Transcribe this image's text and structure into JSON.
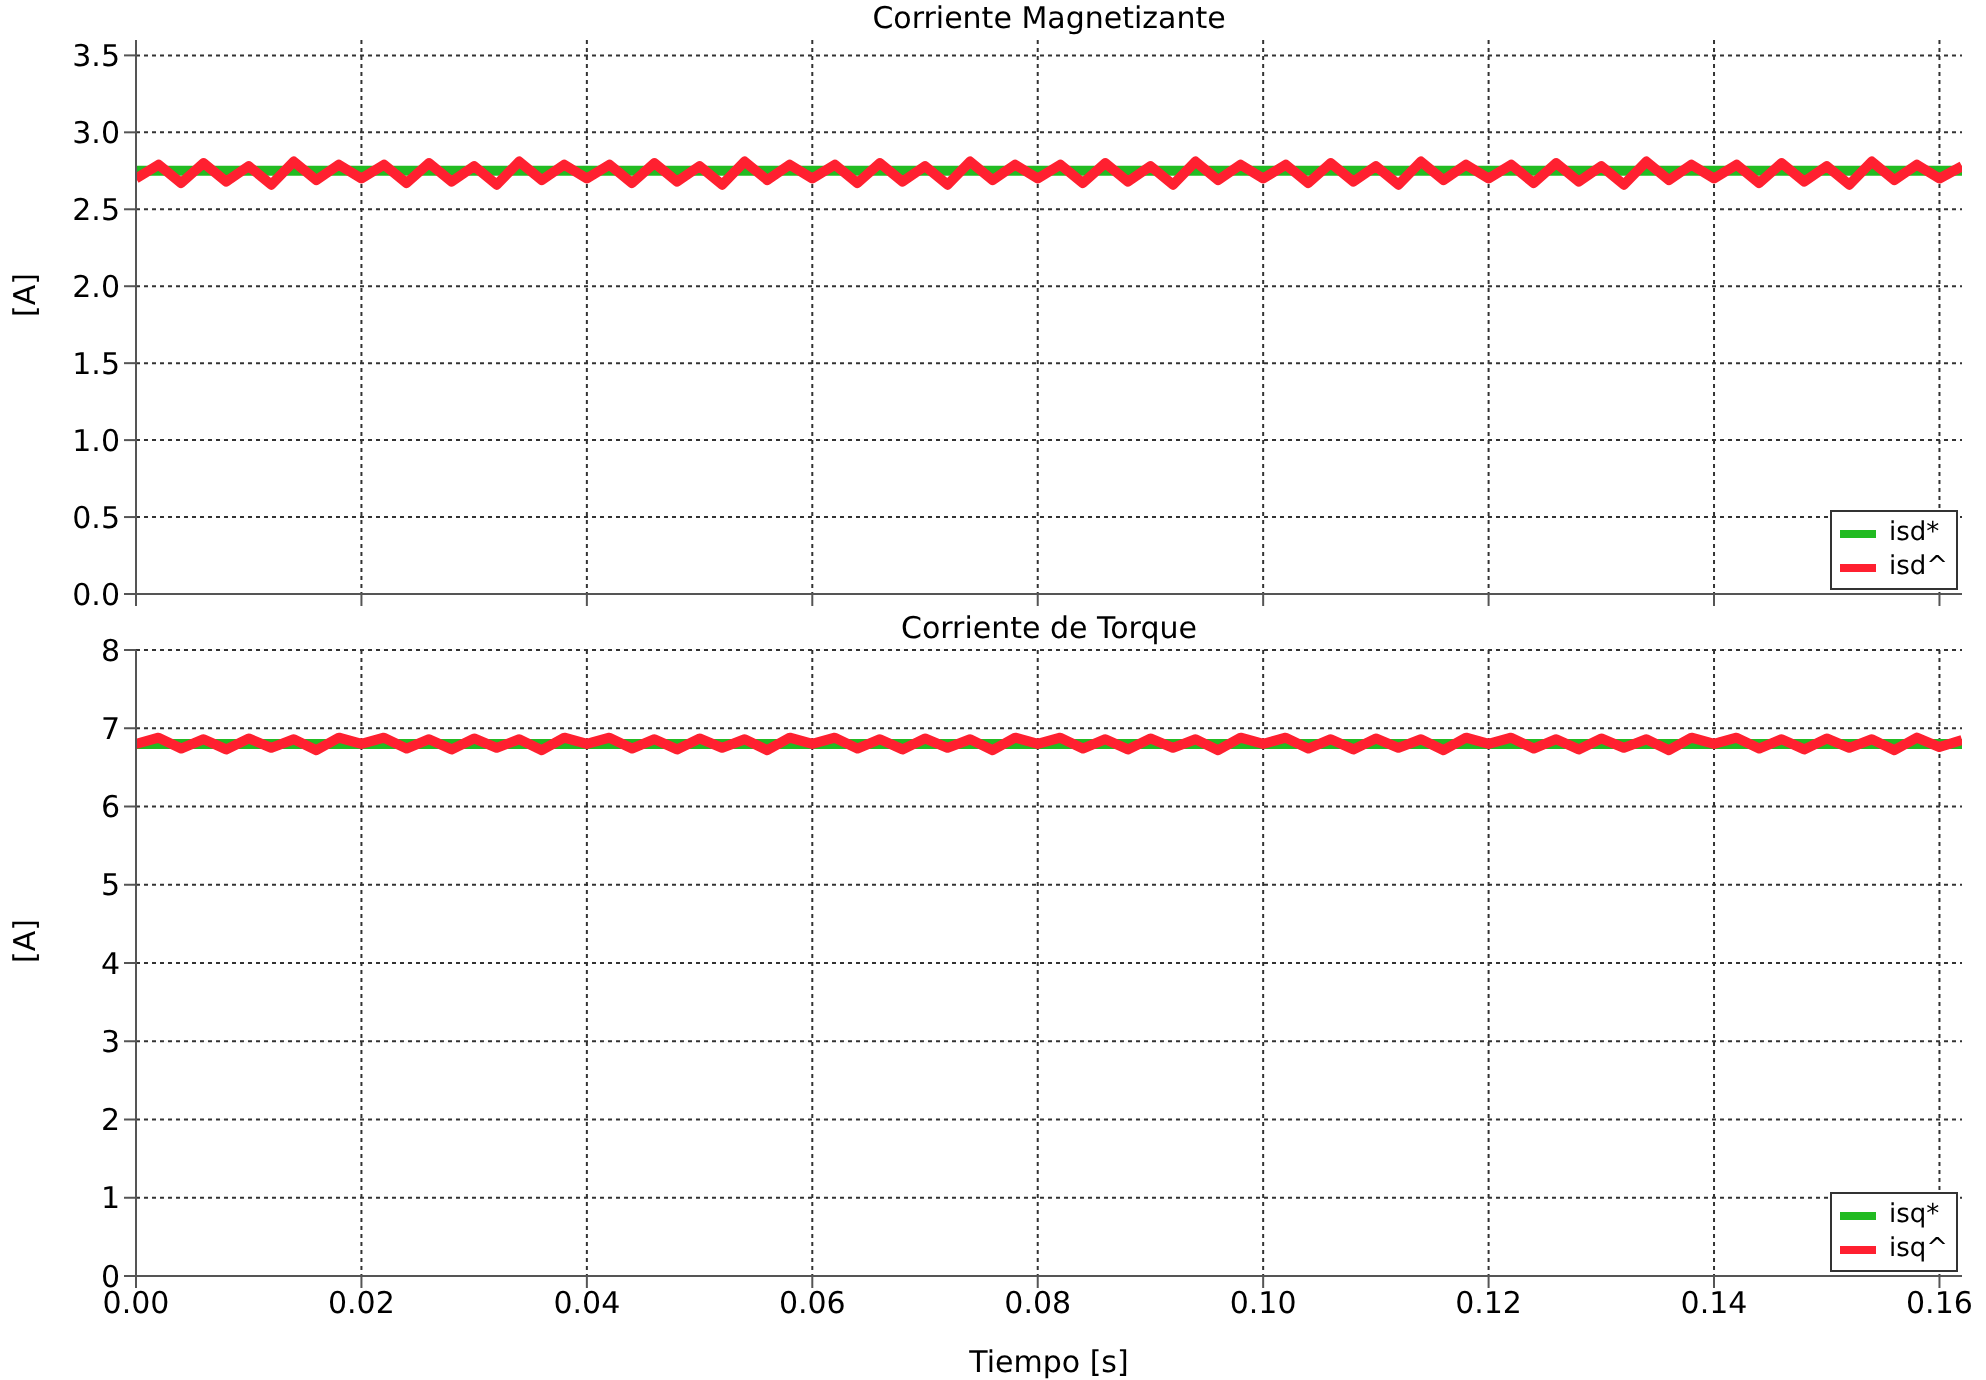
{
  "chart_data": [
    {
      "type": "line",
      "title": "Corriente Magnetizante",
      "ylabel": "[A]",
      "xlim": [
        0,
        0.162
      ],
      "xticks": [
        {
          "value": 0,
          "label": null
        },
        {
          "value": 0.02,
          "label": null
        },
        {
          "value": 0.04,
          "label": null
        },
        {
          "value": 0.06,
          "label": null
        },
        {
          "value": 0.08,
          "label": null
        },
        {
          "value": 0.1,
          "label": null
        },
        {
          "value": 0.12,
          "label": null
        },
        {
          "value": 0.14,
          "label": null
        },
        {
          "value": 0.16,
          "label": null
        }
      ],
      "ylim": [
        0,
        3.6
      ],
      "yticks": [
        {
          "value": 0,
          "label": "0.0"
        },
        {
          "value": 0.5,
          "label": "0.5"
        },
        {
          "value": 1,
          "label": "1.0"
        },
        {
          "value": 1.5,
          "label": "1.5"
        },
        {
          "value": 2,
          "label": "2.0"
        },
        {
          "value": 2.5,
          "label": "2.5"
        },
        {
          "value": 3,
          "label": "3.0"
        },
        {
          "value": 3.5,
          "label": "3.5"
        }
      ],
      "grid": true,
      "legend": "bottom right",
      "tick_labels": "y",
      "marker": "none",
      "line_style": "solid",
      "x": [
        0,
        0.002,
        0.004,
        0.006,
        0.008,
        0.01,
        0.012,
        0.014,
        0.016,
        0.018,
        0.02,
        0.022,
        0.024,
        0.026,
        0.028,
        0.03,
        0.032,
        0.034,
        0.036,
        0.038,
        0.04,
        0.042,
        0.044,
        0.046,
        0.048,
        0.05,
        0.052,
        0.054,
        0.056,
        0.058,
        0.06,
        0.062,
        0.064,
        0.066,
        0.068,
        0.07,
        0.072,
        0.074,
        0.076,
        0.078,
        0.08,
        0.082,
        0.084,
        0.086,
        0.088,
        0.09,
        0.092,
        0.094,
        0.096,
        0.098,
        0.1,
        0.102,
        0.104,
        0.106,
        0.108,
        0.11,
        0.112,
        0.114,
        0.116,
        0.118,
        0.12,
        0.122,
        0.124,
        0.126,
        0.128,
        0.13,
        0.132,
        0.134,
        0.136,
        0.138,
        0.14,
        0.142,
        0.144,
        0.146,
        0.148,
        0.15,
        0.152,
        0.154,
        0.156,
        0.158,
        0.16,
        0.162
      ],
      "series": [
        {
          "name": "isd*",
          "color": "#22bb22",
          "values": [
            2.75,
            2.75,
            2.75,
            2.75,
            2.75,
            2.75,
            2.75,
            2.75,
            2.75,
            2.75,
            2.75,
            2.75,
            2.75,
            2.75,
            2.75,
            2.75,
            2.75,
            2.75,
            2.75,
            2.75,
            2.75,
            2.75,
            2.75,
            2.75,
            2.75,
            2.75,
            2.75,
            2.75,
            2.75,
            2.75,
            2.75,
            2.75,
            2.75,
            2.75,
            2.75,
            2.75,
            2.75,
            2.75,
            2.75,
            2.75,
            2.75,
            2.75,
            2.75,
            2.75,
            2.75,
            2.75,
            2.75,
            2.75,
            2.75,
            2.75,
            2.75,
            2.75,
            2.75,
            2.75,
            2.75,
            2.75,
            2.75,
            2.75,
            2.75,
            2.75,
            2.75,
            2.75,
            2.75,
            2.75,
            2.75,
            2.75,
            2.75,
            2.75,
            2.75,
            2.75,
            2.75,
            2.75,
            2.75,
            2.75,
            2.75,
            2.75,
            2.75,
            2.75,
            2.75,
            2.75,
            2.75,
            2.75
          ]
        },
        {
          "name": "isd^",
          "color": "#ff2030",
          "values": [
            2.7,
            2.79,
            2.67,
            2.8,
            2.68,
            2.78,
            2.66,
            2.81,
            2.69,
            2.79,
            2.7,
            2.79,
            2.67,
            2.8,
            2.68,
            2.78,
            2.66,
            2.81,
            2.69,
            2.79,
            2.7,
            2.79,
            2.67,
            2.8,
            2.68,
            2.78,
            2.66,
            2.81,
            2.69,
            2.79,
            2.7,
            2.79,
            2.67,
            2.8,
            2.68,
            2.78,
            2.66,
            2.81,
            2.69,
            2.79,
            2.7,
            2.79,
            2.67,
            2.8,
            2.68,
            2.78,
            2.66,
            2.81,
            2.69,
            2.79,
            2.7,
            2.79,
            2.67,
            2.8,
            2.68,
            2.78,
            2.66,
            2.81,
            2.69,
            2.79,
            2.7,
            2.79,
            2.67,
            2.8,
            2.68,
            2.78,
            2.66,
            2.81,
            2.69,
            2.79,
            2.7,
            2.79,
            2.67,
            2.8,
            2.68,
            2.78,
            2.66,
            2.81,
            2.69,
            2.79,
            2.7,
            2.78
          ]
        }
      ]
    },
    {
      "type": "line",
      "title": "Corriente de Torque",
      "ylabel": "[A]",
      "xlabel": "Tiempo [s]",
      "xlim": [
        0,
        0.162
      ],
      "xticks": [
        {
          "value": 0,
          "label": "0.00"
        },
        {
          "value": 0.02,
          "label": "0.02"
        },
        {
          "value": 0.04,
          "label": "0.04"
        },
        {
          "value": 0.06,
          "label": "0.06"
        },
        {
          "value": 0.08,
          "label": "0.08"
        },
        {
          "value": 0.1,
          "label": "0.10"
        },
        {
          "value": 0.12,
          "label": "0.12"
        },
        {
          "value": 0.14,
          "label": "0.14"
        },
        {
          "value": 0.16,
          "label": "0.16"
        }
      ],
      "ylim": [
        0,
        8
      ],
      "yticks": [
        0,
        1,
        2,
        3,
        4,
        5,
        6,
        7,
        8
      ],
      "grid": true,
      "legend": "bottom right",
      "marker": "none",
      "line_style": "solid",
      "x": [
        0,
        0.002,
        0.004,
        0.006,
        0.008,
        0.01,
        0.012,
        0.014,
        0.016,
        0.018,
        0.02,
        0.022,
        0.024,
        0.026,
        0.028,
        0.03,
        0.032,
        0.034,
        0.036,
        0.038,
        0.04,
        0.042,
        0.044,
        0.046,
        0.048,
        0.05,
        0.052,
        0.054,
        0.056,
        0.058,
        0.06,
        0.062,
        0.064,
        0.066,
        0.068,
        0.07,
        0.072,
        0.074,
        0.076,
        0.078,
        0.08,
        0.082,
        0.084,
        0.086,
        0.088,
        0.09,
        0.092,
        0.094,
        0.096,
        0.098,
        0.1,
        0.102,
        0.104,
        0.106,
        0.108,
        0.11,
        0.112,
        0.114,
        0.116,
        0.118,
        0.12,
        0.122,
        0.124,
        0.126,
        0.128,
        0.13,
        0.132,
        0.134,
        0.136,
        0.138,
        0.14,
        0.142,
        0.144,
        0.146,
        0.148,
        0.15,
        0.152,
        0.154,
        0.156,
        0.158,
        0.16,
        0.162
      ],
      "series": [
        {
          "name": "isq*",
          "color": "#22bb22",
          "values": [
            6.8,
            6.8,
            6.8,
            6.8,
            6.8,
            6.8,
            6.8,
            6.8,
            6.8,
            6.8,
            6.8,
            6.8,
            6.8,
            6.8,
            6.8,
            6.8,
            6.8,
            6.8,
            6.8,
            6.8,
            6.8,
            6.8,
            6.8,
            6.8,
            6.8,
            6.8,
            6.8,
            6.8,
            6.8,
            6.8,
            6.8,
            6.8,
            6.8,
            6.8,
            6.8,
            6.8,
            6.8,
            6.8,
            6.8,
            6.8,
            6.8,
            6.8,
            6.8,
            6.8,
            6.8,
            6.8,
            6.8,
            6.8,
            6.8,
            6.8,
            6.8,
            6.8,
            6.8,
            6.8,
            6.8,
            6.8,
            6.8,
            6.8,
            6.8,
            6.8,
            6.8,
            6.8,
            6.8,
            6.8,
            6.8,
            6.8,
            6.8,
            6.8,
            6.8,
            6.8,
            6.8,
            6.8,
            6.8,
            6.8,
            6.8,
            6.8,
            6.8,
            6.8,
            6.8,
            6.8,
            6.8,
            6.8
          ]
        },
        {
          "name": "isq^",
          "color": "#ff2030",
          "values": [
            6.8,
            6.88,
            6.74,
            6.86,
            6.73,
            6.87,
            6.75,
            6.86,
            6.72,
            6.88,
            6.8,
            6.88,
            6.74,
            6.86,
            6.73,
            6.87,
            6.75,
            6.86,
            6.72,
            6.88,
            6.8,
            6.88,
            6.74,
            6.86,
            6.73,
            6.87,
            6.75,
            6.86,
            6.72,
            6.88,
            6.8,
            6.88,
            6.74,
            6.86,
            6.73,
            6.87,
            6.75,
            6.86,
            6.72,
            6.88,
            6.8,
            6.88,
            6.74,
            6.86,
            6.73,
            6.87,
            6.75,
            6.86,
            6.72,
            6.88,
            6.8,
            6.88,
            6.74,
            6.86,
            6.73,
            6.87,
            6.75,
            6.86,
            6.72,
            6.88,
            6.8,
            6.88,
            6.74,
            6.86,
            6.73,
            6.87,
            6.75,
            6.86,
            6.72,
            6.88,
            6.8,
            6.88,
            6.74,
            6.86,
            6.73,
            6.87,
            6.75,
            6.86,
            6.72,
            6.88,
            6.76,
            6.85
          ]
        }
      ]
    }
  ]
}
